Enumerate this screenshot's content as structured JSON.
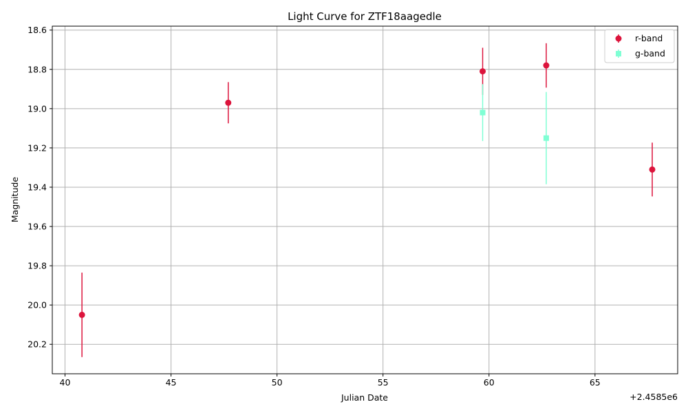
{
  "chart_data": {
    "type": "scatter",
    "title": "Light Curve for ZTF18aagedle",
    "xlabel": "Julian Date",
    "ylabel": "Magnitude",
    "x_offset_label": "+2.4585e6",
    "xlim": [
      39.4,
      68.9
    ],
    "ylim": [
      20.35,
      18.58
    ],
    "y_inverted": true,
    "xticks": [
      40,
      45,
      50,
      55,
      60,
      65
    ],
    "xtick_labels": [
      "40",
      "45",
      "50",
      "55",
      "60",
      "65"
    ],
    "yticks": [
      18.6,
      18.8,
      19.0,
      19.2,
      19.4,
      19.6,
      19.8,
      20.0,
      20.2
    ],
    "ytick_labels": [
      "18.6",
      "18.8",
      "19.0",
      "19.2",
      "19.4",
      "19.6",
      "19.8",
      "20.0",
      "20.2"
    ],
    "grid": true,
    "legend_position": "top-right",
    "series": [
      {
        "name": "r-band",
        "color": "#dc143c",
        "marker": "circle",
        "points": [
          {
            "x": 40.8,
            "y": 20.05,
            "err": 0.215
          },
          {
            "x": 47.7,
            "y": 18.97,
            "err": 0.105
          },
          {
            "x": 59.7,
            "y": 18.81,
            "err": 0.12
          },
          {
            "x": 62.7,
            "y": 18.78,
            "err": 0.113
          },
          {
            "x": 67.7,
            "y": 19.31,
            "err": 0.137
          }
        ]
      },
      {
        "name": "g-band",
        "color": "#7fffd4",
        "marker": "square",
        "points": [
          {
            "x": 59.7,
            "y": 19.02,
            "err": 0.145
          },
          {
            "x": 62.7,
            "y": 19.15,
            "err": 0.235
          }
        ]
      }
    ]
  }
}
